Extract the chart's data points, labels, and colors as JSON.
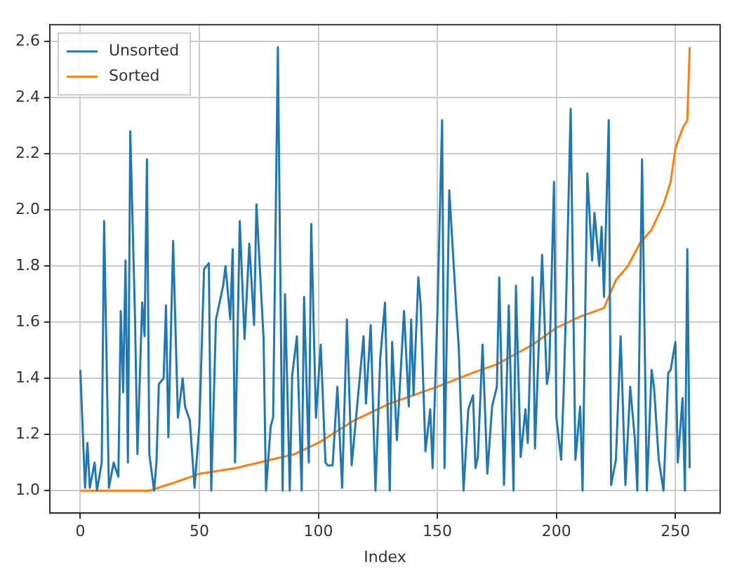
{
  "chart_data": {
    "type": "line",
    "xlabel": "Index",
    "xlim": [
      -12.8,
      268.8
    ],
    "xticks": [
      0,
      50,
      100,
      150,
      200,
      250
    ],
    "ylim": [
      0.92,
      2.66
    ],
    "yticks": [
      {
        "value": 1,
        "label": "1.0"
      },
      1.2,
      1.4,
      1.6,
      1.8,
      {
        "value": 2,
        "label": "2.0"
      },
      2.2,
      2.4,
      2.6
    ],
    "grid": true,
    "legend": "top left",
    "marker": "none",
    "line_style": "solid",
    "series": [
      {
        "name": "Unsorted",
        "color": "#1f77b4",
        "x": [
          0,
          2,
          3,
          4,
          6,
          7,
          9,
          10,
          12,
          14,
          16,
          17,
          18,
          19,
          20,
          21,
          23,
          24,
          26,
          27,
          28,
          29,
          31,
          32,
          33,
          35,
          36,
          37,
          39,
          41,
          43,
          44,
          46,
          48,
          50,
          52,
          54,
          55,
          57,
          60,
          61,
          63,
          64,
          65,
          67,
          69,
          71,
          73,
          74,
          77,
          78,
          80,
          81,
          83,
          85,
          86,
          88,
          89,
          91,
          93,
          94,
          96,
          97,
          99,
          101,
          103,
          104,
          106,
          108,
          110,
          112,
          114,
          119,
          120,
          122,
          124,
          126,
          128,
          130,
          131,
          133,
          136,
          138,
          139,
          140,
          142,
          143,
          145,
          147,
          148,
          150,
          152,
          153,
          155,
          158,
          159,
          161,
          163,
          165,
          166,
          167,
          169,
          171,
          173,
          175,
          176,
          178,
          180,
          182,
          183,
          185,
          187,
          188,
          190,
          191,
          194,
          196,
          197,
          199,
          200,
          202,
          203,
          204,
          206,
          208,
          210,
          211,
          213,
          215,
          216,
          218,
          219,
          220,
          222,
          223,
          225,
          227,
          229,
          231,
          233,
          234,
          236,
          238,
          240,
          241,
          243,
          245,
          247,
          248,
          250,
          251,
          253,
          254,
          255,
          256
        ],
        "values": [
          1.43,
          1.01,
          1.17,
          1.01,
          1.1,
          1.0,
          1.1,
          1.96,
          1.01,
          1.1,
          1.05,
          1.64,
          1.35,
          1.82,
          1.1,
          2.28,
          1.61,
          1.13,
          1.67,
          1.55,
          2.18,
          1.13,
          1.0,
          1.1,
          1.38,
          1.4,
          1.66,
          1.19,
          1.89,
          1.26,
          1.4,
          1.3,
          1.25,
          1.01,
          1.23,
          1.79,
          1.81,
          1.0,
          1.61,
          1.73,
          1.8,
          1.61,
          1.86,
          1.1,
          1.96,
          1.54,
          1.88,
          1.59,
          2.02,
          1.54,
          1.0,
          1.23,
          1.26,
          2.58,
          1.0,
          1.7,
          1.0,
          1.41,
          1.55,
          1.0,
          1.69,
          1.1,
          1.95,
          1.26,
          1.52,
          1.1,
          1.09,
          1.09,
          1.37,
          1.01,
          1.61,
          1.09,
          1.55,
          1.31,
          1.59,
          1.0,
          1.47,
          1.67,
          1.0,
          1.53,
          1.18,
          1.64,
          1.3,
          1.61,
          1.34,
          1.76,
          1.66,
          1.14,
          1.29,
          1.08,
          1.63,
          2.32,
          1.08,
          2.07,
          1.64,
          1.51,
          1.0,
          1.29,
          1.34,
          1.08,
          1.12,
          1.52,
          1.06,
          1.3,
          1.37,
          1.76,
          1.02,
          1.66,
          1.0,
          1.73,
          1.12,
          1.29,
          1.17,
          1.76,
          1.15,
          1.84,
          1.38,
          1.43,
          2.1,
          1.26,
          1.11,
          1.34,
          1.64,
          2.36,
          1.11,
          1.3,
          1.0,
          2.13,
          1.82,
          1.99,
          1.8,
          1.94,
          1.69,
          2.32,
          1.02,
          1.11,
          1.55,
          1.02,
          1.37,
          1.18,
          1.0,
          2.18,
          1.0,
          1.43,
          1.37,
          1.11,
          1.0,
          1.42,
          1.43,
          1.53,
          1.1,
          1.33,
          1.0,
          1.86,
          1.08
        ]
      },
      {
        "name": "Sorted",
        "color": "#ff7f0e",
        "x": [
          0,
          29,
          40,
          50,
          65,
          80,
          90,
          100,
          115,
          130,
          150,
          165,
          175,
          190,
          200,
          210,
          220,
          225,
          230,
          235,
          240,
          245,
          248,
          250,
          253,
          255,
          256
        ],
        "values": [
          1.0,
          1.0,
          1.03,
          1.06,
          1.08,
          1.11,
          1.13,
          1.17,
          1.25,
          1.31,
          1.37,
          1.42,
          1.45,
          1.52,
          1.58,
          1.62,
          1.65,
          1.75,
          1.8,
          1.88,
          1.93,
          2.02,
          2.1,
          2.22,
          2.29,
          2.32,
          2.58
        ]
      }
    ]
  }
}
